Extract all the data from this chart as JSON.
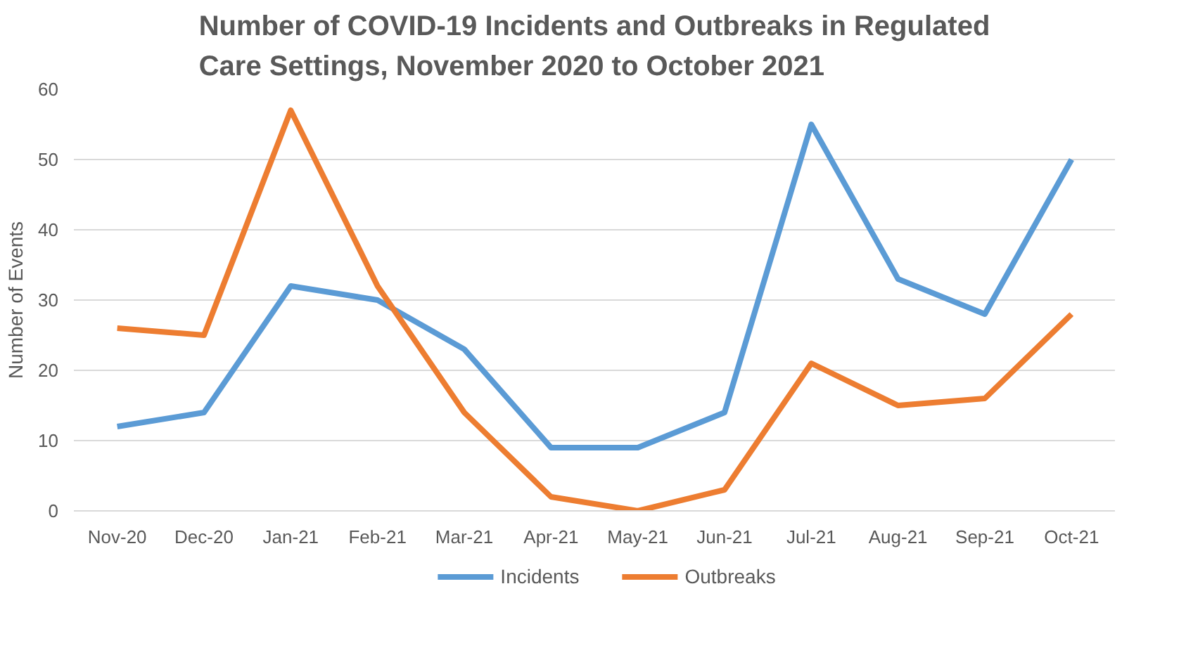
{
  "chart_data": {
    "type": "line",
    "title": "Number of COVID-19 Incidents and Outbreaks in Regulated\nCare Settings, November 2020 to October 2021",
    "ylabel": "Number of Events",
    "categories": [
      "Nov-20",
      "Dec-20",
      "Jan-21",
      "Feb-21",
      "Mar-21",
      "Apr-21",
      "May-21",
      "Jun-21",
      "Jul-21",
      "Aug-21",
      "Sep-21",
      "Oct-21"
    ],
    "series": [
      {
        "name": "Incidents",
        "color": "#5b9bd5",
        "values": [
          12,
          14,
          32,
          30,
          23,
          9,
          9,
          14,
          55,
          33,
          28,
          50
        ]
      },
      {
        "name": "Outbreaks",
        "color": "#ed7d31",
        "values": [
          26,
          25,
          57,
          32,
          14,
          2,
          0,
          3,
          21,
          15,
          16,
          28
        ]
      }
    ],
    "ylim": [
      0,
      60
    ],
    "yticks": [
      0,
      10,
      20,
      30,
      40,
      50,
      60
    ],
    "grid": "y",
    "legend": "bottom",
    "marker": "none",
    "line_style": "solid"
  }
}
